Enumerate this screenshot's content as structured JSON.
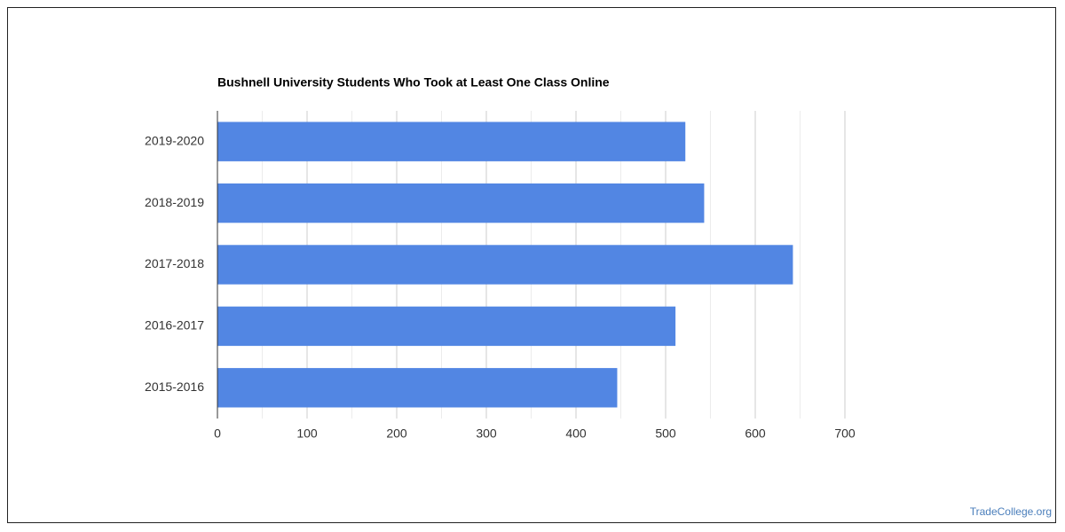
{
  "chart_data": {
    "type": "hbar",
    "title": "Bushnell University Students Who Took at Least One Class Online",
    "categories": [
      "2019-2020",
      "2018-2019",
      "2017-2018",
      "2016-2017",
      "2015-2016"
    ],
    "values": [
      522,
      543,
      642,
      511,
      446
    ],
    "color": "#5286e3",
    "xlim": [
      0,
      700
    ],
    "xticks": [
      0,
      100,
      200,
      300,
      400,
      500,
      600,
      700
    ],
    "minor_xticks": [
      50,
      150,
      250,
      350,
      450,
      550,
      650
    ],
    "grid": true
  },
  "footer": "TradeCollege.org"
}
